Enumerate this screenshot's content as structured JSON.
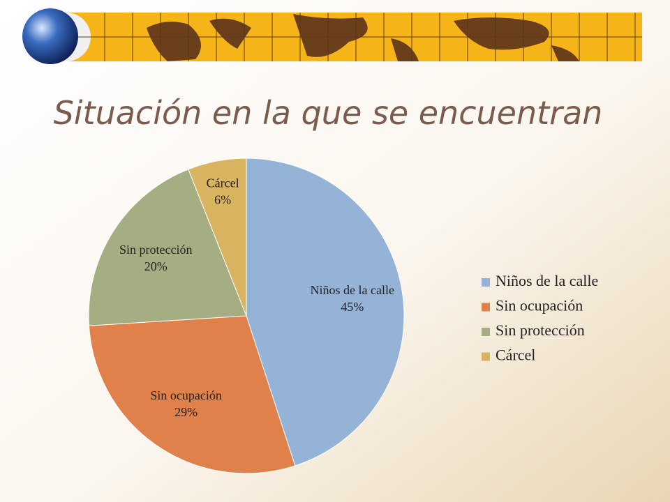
{
  "chart_data": {
    "type": "pie",
    "title": "Situación en la que se encuentran",
    "categories": [
      "Niños de la calle",
      "Sin ocupación",
      "Sin protección",
      "Cárcel"
    ],
    "values": [
      45,
      29,
      20,
      6
    ],
    "value_labels": [
      "45%",
      "29%",
      "20%",
      "6%"
    ],
    "colors": [
      "#95b3d7",
      "#e0804a",
      "#a5ae82",
      "#d9b460"
    ],
    "legend": "right"
  }
}
